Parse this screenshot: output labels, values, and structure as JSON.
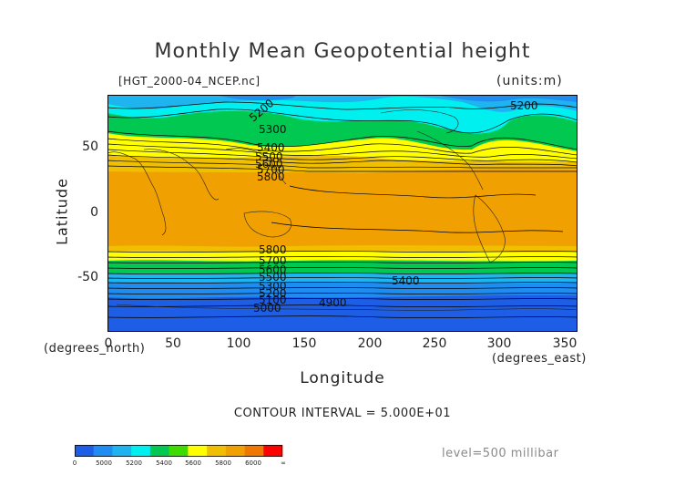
{
  "header": {
    "title": "Monthly Mean Geopotential height",
    "file": "[HGT_2000-04_NCEP.nc]",
    "units": "(units:m)"
  },
  "axes": {
    "y_ticks": [
      "50",
      "0",
      "-50"
    ],
    "x_ticks": [
      "0",
      "50",
      "100",
      "150",
      "200",
      "250",
      "300",
      "350"
    ],
    "y_label": "Latitude",
    "x_label": "Longitude",
    "y_sub": "(degrees_north)",
    "x_sub": "(degrees_east)"
  },
  "contours": {
    "interval_text": "CONTOUR INTERVAL = 5.000E+01",
    "labels": [
      "5200",
      "5300",
      "5400",
      "5500",
      "5600",
      "5700",
      "5800",
      "5200",
      "5800",
      "5700",
      "5600",
      "5500",
      "5400",
      "5300",
      "5200",
      "5100",
      "5000",
      "4900"
    ]
  },
  "level_text": "level=500 millibar",
  "colorbar": {
    "labels": [
      "0",
      "5000",
      "5200",
      "5400",
      "5600",
      "5800",
      "6000",
      "∞"
    ],
    "colors": [
      "#1e5ee6",
      "#1e8cf0",
      "#1eb4f0",
      "#00f0f0",
      "#00c850",
      "#3cdc00",
      "#ffff00",
      "#f0c000",
      "#f0a000",
      "#f07800",
      "#ff0000"
    ]
  },
  "palette": {
    "deep_blue": "#1e5ee6",
    "blue": "#1e8cf0",
    "sky": "#1eb4f0",
    "cyan": "#00f0f0",
    "green": "#00c850",
    "yellow": "#ffff00",
    "gold": "#f0c000",
    "orange": "#f0a000"
  }
}
